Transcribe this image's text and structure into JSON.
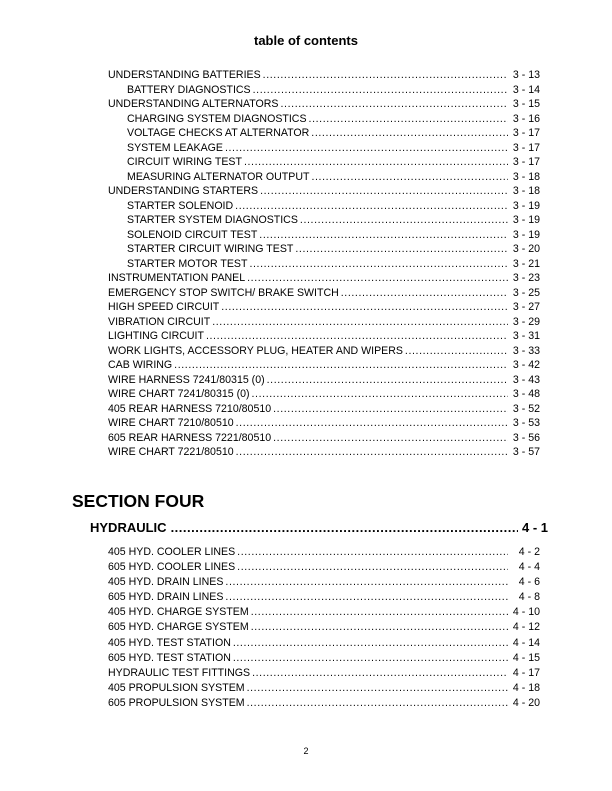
{
  "title": "table of contents",
  "section_three_entries": [
    {
      "label": "UNDERSTANDING BATTERIES",
      "page": "3 - 13",
      "indent": false
    },
    {
      "label": "BATTERY DIAGNOSTICS",
      "page": "3 - 14",
      "indent": true
    },
    {
      "label": "UNDERSTANDING ALTERNATORS",
      "page": "3 - 15",
      "indent": false
    },
    {
      "label": "CHARGING SYSTEM DIAGNOSTICS",
      "page": "3 - 16",
      "indent": true
    },
    {
      "label": "VOLTAGE CHECKS  AT ALTERNATOR",
      "page": "3 - 17",
      "indent": true
    },
    {
      "label": "SYSTEM LEAKAGE",
      "page": "3 - 17",
      "indent": true
    },
    {
      "label": "CIRCUIT WIRING TEST",
      "page": "3 - 17",
      "indent": true
    },
    {
      "label": "MEASURING ALTERNATOR OUTPUT",
      "page": "3 - 18",
      "indent": true
    },
    {
      "label": "UNDERSTANDING STARTERS",
      "page": "3 - 18",
      "indent": false
    },
    {
      "label": "STARTER SOLENOID",
      "page": "3 - 19",
      "indent": true
    },
    {
      "label": "STARTER SYSTEM DIAGNOSTICS",
      "page": "3 - 19",
      "indent": true
    },
    {
      "label": "SOLENOID CIRCUIT TEST",
      "page": "3 - 19",
      "indent": true
    },
    {
      "label": "STARTER CIRCUIT WIRING TEST",
      "page": "3 - 20",
      "indent": true
    },
    {
      "label": "STARTER MOTOR TEST",
      "page": "3 - 21",
      "indent": true
    },
    {
      "label": "INSTRUMENTATION PANEL",
      "page": "3 - 23",
      "indent": false
    },
    {
      "label": "EMERGENCY STOP SWITCH/ BRAKE SWITCH",
      "page": "3 - 25",
      "indent": false
    },
    {
      "label": "HIGH SPEED CIRCUIT",
      "page": "3 - 27",
      "indent": false
    },
    {
      "label": "VIBRATION CIRCUIT",
      "page": "3 - 29",
      "indent": false
    },
    {
      "label": "LIGHTING CIRCUIT",
      "page": "3 - 31",
      "indent": false
    },
    {
      "label": "WORK LIGHTS, ACCESSORY PLUG, HEATER  AND WIPERS",
      "page": "3 - 33",
      "indent": false
    },
    {
      "label": "CAB WIRING",
      "page": "3 - 42",
      "indent": false
    },
    {
      "label": "WIRE HARNESS 7241/80315 (0)",
      "page": "3 - 43",
      "indent": false
    },
    {
      "label": "WIRE CHART 7241/80315 (0)",
      "page": "3 - 48",
      "indent": false
    },
    {
      "label": "405 REAR HARNESS 7210/80510",
      "page": "3 - 52",
      "indent": false
    },
    {
      "label": "WIRE CHART 7210/80510",
      "page": "3 - 53",
      "indent": false
    },
    {
      "label": "605 REAR HARNESS 7221/80510",
      "page": "3 - 56",
      "indent": false
    },
    {
      "label": "WIRE CHART 7221/80510",
      "page": "3 - 57",
      "indent": false
    }
  ],
  "section_four": {
    "heading": "SECTION FOUR",
    "main_entry": {
      "label": "HYDRAULIC",
      "page": "4 - 1"
    },
    "entries": [
      {
        "label": "405 HYD. COOLER LINES",
        "page": "4 - 2"
      },
      {
        "label": "605 HYD. COOLER LINES",
        "page": "4 - 4"
      },
      {
        "label": "405 HYD. DRAIN LINES",
        "page": "4 - 6"
      },
      {
        "label": "605 HYD. DRAIN LINES",
        "page": "4 - 8"
      },
      {
        "label": "405 HYD. CHARGE SYSTEM",
        "page": "4 - 10"
      },
      {
        "label": "605 HYD. CHARGE SYSTEM",
        "page": "4 - 12"
      },
      {
        "label": "405 HYD. TEST STATION",
        "page": "4 - 14"
      },
      {
        "label": "605 HYD. TEST STATION",
        "page": "4 - 15"
      },
      {
        "label": "HYDRAULIC TEST FITTINGS",
        "page": "4 - 17"
      },
      {
        "label": "405 PROPULSION SYSTEM",
        "page": "4 - 18"
      },
      {
        "label": "605 PROPULSION SYSTEM",
        "page": "4 - 20"
      }
    ]
  },
  "page_number": "2"
}
